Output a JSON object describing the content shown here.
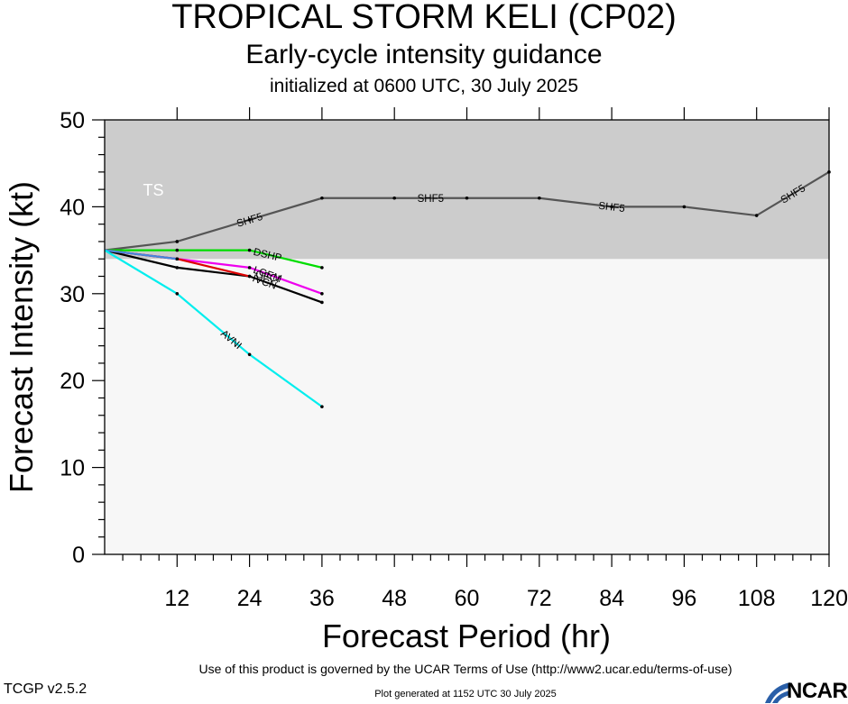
{
  "header": {
    "title": "TROPICAL STORM KELI (CP02)",
    "subtitle": "Early-cycle intensity guidance",
    "initialized": "initialized at 0600 UTC, 30 July 2025"
  },
  "footer": {
    "terms": "Use of this product is governed by the UCAR Terms of Use (http://www2.ucar.edu/terms-of-use)",
    "version": "TCGP v2.5.2",
    "generated": "Plot generated at 1152 UTC   30 July 2025",
    "logo_text": "NCAR"
  },
  "chart_data": {
    "type": "line",
    "xlabel": "Forecast Period (hr)",
    "ylabel": "Forecast Intensity (kt)",
    "xlim": [
      0,
      120
    ],
    "ylim": [
      0,
      50
    ],
    "xticks": [
      12,
      24,
      36,
      48,
      60,
      72,
      84,
      96,
      108,
      120
    ],
    "yticks": [
      0,
      10,
      20,
      30,
      40,
      50
    ],
    "grid": false,
    "background_colors": {
      "plot": "#f7f7f7",
      "ts_band": "#cccccc"
    },
    "bands": [
      {
        "label": "TS",
        "y_from": 34,
        "y_to": 50,
        "color": "#cccccc",
        "label_color": "#ffffff"
      }
    ],
    "series": [
      {
        "name": "SHF5",
        "color": "#555555",
        "x": [
          0,
          12,
          24,
          36,
          48,
          60,
          72,
          84,
          96,
          108,
          120
        ],
        "y": [
          35,
          36,
          38.5,
          41,
          41,
          41,
          41,
          40,
          40,
          39,
          44
        ],
        "labels": [
          {
            "text": "SHF5",
            "x": 24
          },
          {
            "text": "SHF5",
            "x": 54
          },
          {
            "text": "SHF5",
            "x": 84
          },
          {
            "text": "SHF5",
            "x": 114
          }
        ]
      },
      {
        "name": "DSHP",
        "color": "#00dd00",
        "x": [
          0,
          12,
          24,
          36
        ],
        "y": [
          35,
          35,
          35,
          33
        ],
        "labels": [
          {
            "text": "DSHP",
            "x": 27
          }
        ]
      },
      {
        "name": "LGEM",
        "color": "#ee00ee",
        "x": [
          0,
          12,
          24,
          36
        ],
        "y": [
          35,
          34,
          33,
          30
        ],
        "labels": [
          {
            "text": "LGEM",
            "x": 27
          }
        ]
      },
      {
        "name": "IVCN",
        "color": "#000000",
        "x": [
          0,
          12,
          24,
          36
        ],
        "y": [
          35,
          33,
          32,
          29
        ],
        "labels": [
          {
            "text": "IVCN",
            "x": 26.5
          }
        ]
      },
      {
        "name": "OFCI",
        "color": "#dd0000",
        "x": [
          0,
          12,
          24
        ],
        "y": [
          35,
          34,
          32
        ],
        "labels": [
          {
            "text": "OFCI",
            "x": 27
          }
        ]
      },
      {
        "name": "AVNI_blue",
        "color": "#4488dd",
        "x": [
          0,
          12
        ],
        "y": [
          35,
          34
        ],
        "labels": []
      },
      {
        "name": "AVNI",
        "color": "#00eeee",
        "x": [
          0,
          12,
          24,
          36
        ],
        "y": [
          35,
          30,
          23,
          17
        ],
        "labels": [
          {
            "text": "AVNI",
            "x": 21
          }
        ]
      }
    ]
  }
}
